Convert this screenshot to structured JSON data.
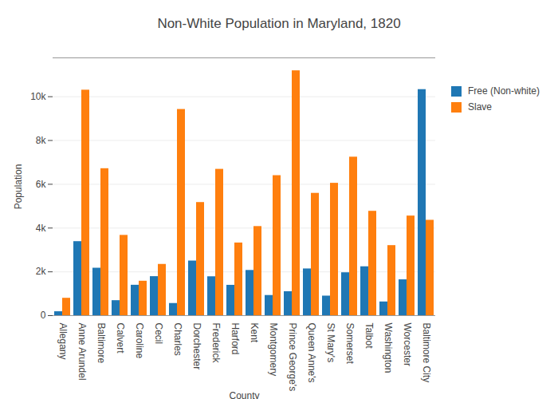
{
  "chart_data": {
    "type": "bar",
    "title": "Non-White Population in Maryland, 1820",
    "x_label": "County",
    "y_label": "Population",
    "categories": [
      "Allegany",
      "Anne Arundel",
      "Baltimore",
      "Calvert",
      "Caroline",
      "Cecil",
      "Charles",
      "Dorchester",
      "Frederick",
      "Harford",
      "Kent",
      "Montgomery",
      "Prince George's",
      "Queen Anne's",
      "St Mary's",
      "Somerset",
      "Talbot",
      "Washington",
      "Worcester",
      "Baltimore City"
    ],
    "series": [
      {
        "name": "Free (Non-white)",
        "color": "#1f77b4",
        "values": [
          180,
          3382,
          2168,
          686,
          1390,
          1783,
          556,
          2496,
          1777,
          1387,
          2066,
          922,
          1096,
          2135,
          894,
          1960,
          2234,
          627,
          1638,
          10326
        ]
      },
      {
        "name": "Slave",
        "color": "#ff7f0e",
        "values": [
          795,
          10301,
          6714,
          3668,
          1574,
          2342,
          9419,
          5168,
          6685,
          3320,
          4071,
          6396,
          11185,
          5588,
          6047,
          7241,
          4768,
          3201,
          4551,
          4357
        ]
      }
    ],
    "ylim": [
      0,
      11774
    ],
    "yticks": [
      0,
      {
        "value": 2000,
        "label": "2k"
      },
      {
        "value": 4000,
        "label": "4k"
      },
      {
        "value": 6000,
        "label": "6k"
      },
      {
        "value": 8000,
        "label": "8k"
      },
      {
        "value": 10000,
        "label": "10k"
      }
    ],
    "grid": true,
    "legend": "right"
  }
}
